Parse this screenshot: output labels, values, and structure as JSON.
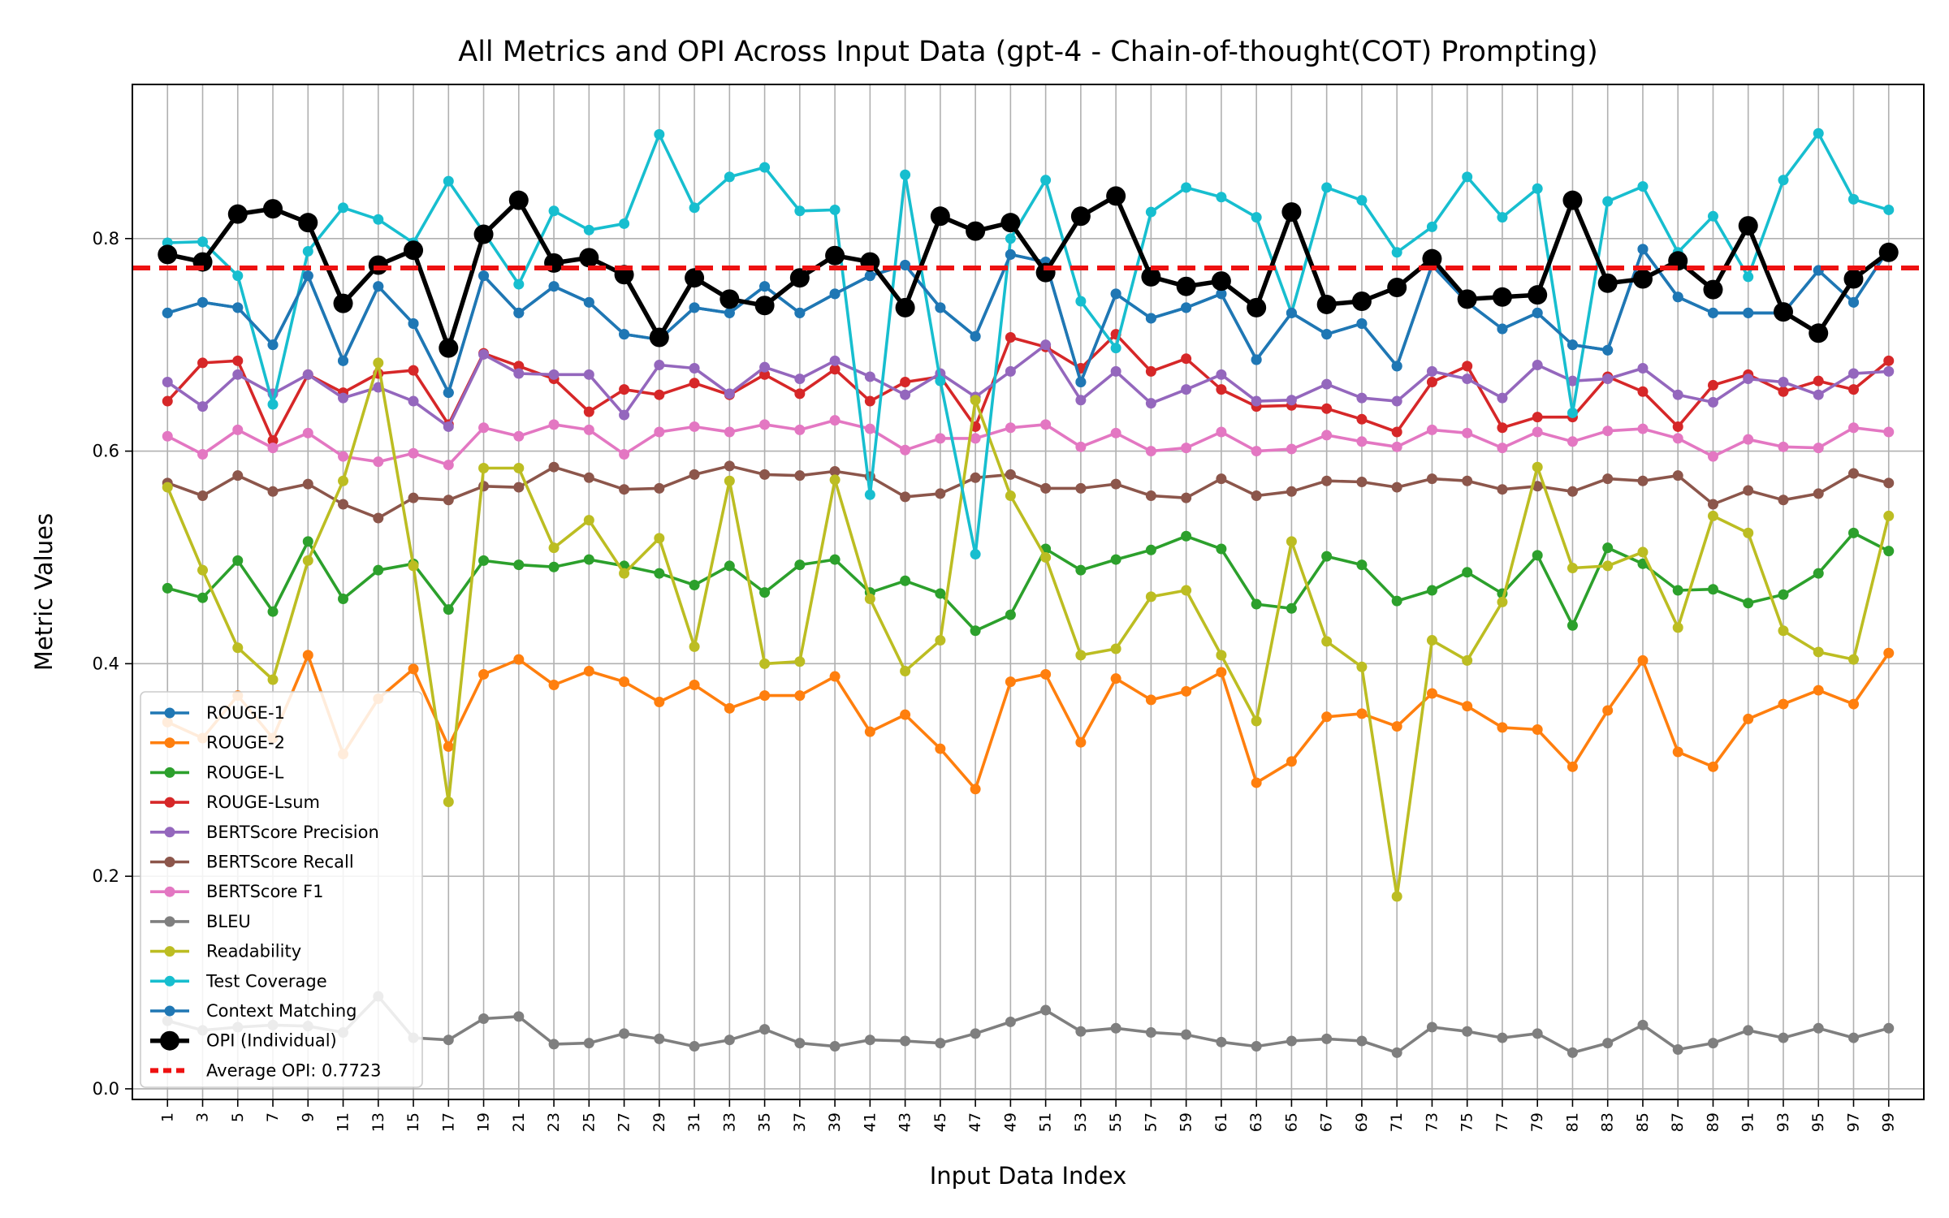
{
  "chart_data": {
    "type": "line",
    "title": "All Metrics and OPI Across Input Data (gpt-4 - Chain-of-thought(COT) Prompting)",
    "xlabel": "Input Data Index",
    "ylabel": "Metric Values",
    "xlim": [
      -1,
      101
    ],
    "ylim": [
      -0.01,
      0.945
    ],
    "grid": true,
    "legend_position": "lower-left",
    "x": [
      1,
      3,
      5,
      7,
      9,
      11,
      13,
      15,
      17,
      19,
      21,
      23,
      25,
      27,
      29,
      31,
      33,
      35,
      37,
      39,
      41,
      43,
      45,
      47,
      49,
      51,
      53,
      55,
      57,
      59,
      61,
      63,
      65,
      67,
      69,
      71,
      73,
      75,
      77,
      79,
      81,
      83,
      85,
      87,
      89,
      91,
      93,
      95,
      97,
      99
    ],
    "x_tick_labels": [
      "1",
      "3",
      "5",
      "7",
      "9",
      "11",
      "13",
      "15",
      "17",
      "19",
      "21",
      "23",
      "25",
      "27",
      "29",
      "31",
      "33",
      "35",
      "37",
      "39",
      "41",
      "43",
      "45",
      "47",
      "49",
      "51",
      "53",
      "55",
      "57",
      "59",
      "61",
      "63",
      "65",
      "67",
      "69",
      "71",
      "73",
      "75",
      "77",
      "79",
      "81",
      "83",
      "85",
      "87",
      "89",
      "91",
      "93",
      "95",
      "97",
      "99"
    ],
    "y_ticks": [
      0.0,
      0.2,
      0.4,
      0.6,
      0.8
    ],
    "y_tick_labels": [
      "0.0",
      "0.2",
      "0.4",
      "0.6",
      "0.8"
    ],
    "series": [
      {
        "name": "ROUGE-1",
        "color": "#1f77b4",
        "values": [
          0.73,
          0.74,
          0.735,
          0.7,
          0.765,
          0.685,
          0.755,
          0.72,
          0.655,
          0.765,
          0.73,
          0.755,
          0.74,
          0.71,
          0.705,
          0.735,
          0.73,
          0.755,
          0.73,
          0.748,
          0.765,
          0.775,
          0.735,
          0.708,
          0.785,
          0.778,
          0.665,
          0.748,
          0.725,
          0.735,
          0.748,
          0.686,
          0.73,
          0.71,
          0.72,
          0.68,
          0.775,
          0.74,
          0.715,
          0.73,
          0.7,
          0.695,
          0.79,
          0.745,
          0.73,
          0.73,
          0.73,
          0.77,
          0.74,
          0.79
        ]
      },
      {
        "name": "ROUGE-2",
        "color": "#ff7f0e",
        "values": [
          0.345,
          0.33,
          0.37,
          0.33,
          0.408,
          0.315,
          0.367,
          0.395,
          0.322,
          0.39,
          0.404,
          0.38,
          0.393,
          0.383,
          0.364,
          0.38,
          0.358,
          0.37,
          0.37,
          0.388,
          0.336,
          0.352,
          0.32,
          0.282,
          0.383,
          0.39,
          0.326,
          0.386,
          0.366,
          0.374,
          0.392,
          0.288,
          0.308,
          0.35,
          0.353,
          0.341,
          0.372,
          0.36,
          0.34,
          0.338,
          0.303,
          0.356,
          0.403,
          0.317,
          0.303,
          0.348,
          0.362,
          0.375,
          0.362,
          0.41
        ]
      },
      {
        "name": "ROUGE-L",
        "color": "#2ca02c",
        "values": [
          0.471,
          0.462,
          0.497,
          0.449,
          0.515,
          0.461,
          0.488,
          0.494,
          0.451,
          0.497,
          0.493,
          0.491,
          0.498,
          0.492,
          0.485,
          0.474,
          0.492,
          0.467,
          0.493,
          0.498,
          0.467,
          0.478,
          0.466,
          0.431,
          0.446,
          0.508,
          0.488,
          0.498,
          0.507,
          0.52,
          0.508,
          0.456,
          0.452,
          0.501,
          0.493,
          0.459,
          0.469,
          0.486,
          0.466,
          0.502,
          0.436,
          0.509,
          0.494,
          0.469,
          0.47,
          0.457,
          0.465,
          0.485,
          0.523,
          0.506
        ]
      },
      {
        "name": "ROUGE-Lsum",
        "color": "#d62728",
        "values": [
          0.647,
          0.683,
          0.685,
          0.61,
          0.672,
          0.655,
          0.673,
          0.676,
          0.625,
          0.692,
          0.68,
          0.668,
          0.637,
          0.658,
          0.653,
          0.664,
          0.653,
          0.672,
          0.654,
          0.677,
          0.647,
          0.665,
          0.67,
          0.623,
          0.707,
          0.698,
          0.678,
          0.71,
          0.675,
          0.687,
          0.658,
          0.642,
          0.643,
          0.64,
          0.63,
          0.618,
          0.665,
          0.68,
          0.622,
          0.632,
          0.632,
          0.67,
          0.656,
          0.623,
          0.662,
          0.672,
          0.656,
          0.666,
          0.658,
          0.685
        ]
      },
      {
        "name": "BERTScore Precision",
        "color": "#9467bd",
        "values": [
          0.665,
          0.642,
          0.672,
          0.654,
          0.672,
          0.65,
          0.66,
          0.647,
          0.623,
          0.691,
          0.673,
          0.672,
          0.672,
          0.634,
          0.681,
          0.678,
          0.654,
          0.679,
          0.668,
          0.685,
          0.67,
          0.653,
          0.673,
          0.651,
          0.675,
          0.7,
          0.648,
          0.675,
          0.645,
          0.658,
          0.672,
          0.647,
          0.648,
          0.663,
          0.65,
          0.647,
          0.675,
          0.668,
          0.65,
          0.681,
          0.666,
          0.668,
          0.678,
          0.653,
          0.646,
          0.668,
          0.665,
          0.653,
          0.673,
          0.675
        ]
      },
      {
        "name": "BERTScore Recall",
        "color": "#8c564b",
        "values": [
          0.57,
          0.558,
          0.577,
          0.562,
          0.569,
          0.55,
          0.537,
          0.556,
          0.554,
          0.567,
          0.566,
          0.585,
          0.575,
          0.564,
          0.565,
          0.578,
          0.586,
          0.578,
          0.577,
          0.581,
          0.576,
          0.557,
          0.56,
          0.575,
          0.578,
          0.565,
          0.565,
          0.569,
          0.558,
          0.556,
          0.574,
          0.558,
          0.562,
          0.572,
          0.571,
          0.566,
          0.574,
          0.572,
          0.564,
          0.567,
          0.562,
          0.574,
          0.572,
          0.577,
          0.55,
          0.563,
          0.554,
          0.56,
          0.579,
          0.57
        ]
      },
      {
        "name": "BERTScore F1",
        "color": "#e377c2",
        "values": [
          0.614,
          0.597,
          0.62,
          0.603,
          0.617,
          0.595,
          0.59,
          0.598,
          0.587,
          0.622,
          0.614,
          0.625,
          0.62,
          0.597,
          0.618,
          0.623,
          0.618,
          0.625,
          0.62,
          0.629,
          0.621,
          0.601,
          0.612,
          0.612,
          0.622,
          0.625,
          0.604,
          0.617,
          0.6,
          0.603,
          0.618,
          0.6,
          0.602,
          0.615,
          0.609,
          0.604,
          0.62,
          0.617,
          0.603,
          0.618,
          0.609,
          0.619,
          0.621,
          0.612,
          0.595,
          0.611,
          0.604,
          0.603,
          0.622,
          0.618
        ]
      },
      {
        "name": "BLEU",
        "color": "#7f7f7f",
        "values": [
          0.064,
          0.055,
          0.058,
          0.06,
          0.059,
          0.053,
          0.087,
          0.048,
          0.046,
          0.066,
          0.068,
          0.042,
          0.043,
          0.052,
          0.047,
          0.04,
          0.046,
          0.056,
          0.043,
          0.04,
          0.046,
          0.045,
          0.043,
          0.052,
          0.063,
          0.074,
          0.054,
          0.057,
          0.053,
          0.051,
          0.044,
          0.04,
          0.045,
          0.047,
          0.045,
          0.034,
          0.058,
          0.054,
          0.048,
          0.052,
          0.034,
          0.043,
          0.06,
          0.037,
          0.043,
          0.055,
          0.048,
          0.057,
          0.048,
          0.057
        ]
      },
      {
        "name": "Readability",
        "color": "#bcbd22",
        "values": [
          0.566,
          0.488,
          0.415,
          0.385,
          0.497,
          0.572,
          0.683,
          0.492,
          0.27,
          0.584,
          0.584,
          0.509,
          0.535,
          0.485,
          0.518,
          0.416,
          0.572,
          0.4,
          0.402,
          0.573,
          0.461,
          0.393,
          0.422,
          0.648,
          0.558,
          0.5,
          0.408,
          0.414,
          0.463,
          0.469,
          0.408,
          0.346,
          0.515,
          0.421,
          0.397,
          0.181,
          0.422,
          0.403,
          0.458,
          0.585,
          0.49,
          0.492,
          0.505,
          0.434,
          0.539,
          0.523,
          0.431,
          0.411,
          0.404,
          0.539
        ]
      },
      {
        "name": "Test Coverage",
        "color": "#17becf",
        "values": [
          0.796,
          0.797,
          0.765,
          0.644,
          0.788,
          0.829,
          0.818,
          0.796,
          0.854,
          0.806,
          0.757,
          0.826,
          0.808,
          0.814,
          0.898,
          0.829,
          0.858,
          0.867,
          0.826,
          0.827,
          0.559,
          0.86,
          0.666,
          0.503,
          0.8,
          0.855,
          0.741,
          0.697,
          0.825,
          0.848,
          0.839,
          0.82,
          0.73,
          0.848,
          0.836,
          0.787,
          0.811,
          0.858,
          0.82,
          0.847,
          0.636,
          0.835,
          0.849,
          0.787,
          0.821,
          0.764,
          0.855,
          0.899,
          0.837,
          0.827
        ]
      },
      {
        "name": "Context Matching",
        "color": "#1f77b4",
        "values": [
          0.73,
          0.74,
          0.735,
          0.7,
          0.765,
          0.685,
          0.755,
          0.72,
          0.655,
          0.765,
          0.73,
          0.755,
          0.74,
          0.71,
          0.705,
          0.735,
          0.73,
          0.755,
          0.73,
          0.748,
          0.765,
          0.775,
          0.735,
          0.708,
          0.785,
          0.778,
          0.665,
          0.748,
          0.725,
          0.735,
          0.748,
          0.686,
          0.73,
          0.71,
          0.72,
          0.68,
          0.775,
          0.74,
          0.715,
          0.73,
          0.7,
          0.695,
          0.79,
          0.745,
          0.73,
          0.73,
          0.73,
          0.77,
          0.74,
          0.79
        ]
      },
      {
        "name": "OPI (Individual)",
        "color": "#000000",
        "values": [
          0.785,
          0.778,
          0.823,
          0.828,
          0.815,
          0.739,
          0.775,
          0.789,
          0.697,
          0.804,
          0.836,
          0.777,
          0.782,
          0.766,
          0.707,
          0.763,
          0.743,
          0.737,
          0.763,
          0.784,
          0.778,
          0.735,
          0.821,
          0.807,
          0.815,
          0.768,
          0.821,
          0.84,
          0.764,
          0.755,
          0.76,
          0.735,
          0.825,
          0.738,
          0.741,
          0.754,
          0.781,
          0.743,
          0.745,
          0.747,
          0.836,
          0.758,
          0.762,
          0.779,
          0.752,
          0.812,
          0.731,
          0.711,
          0.762,
          0.787
        ]
      }
    ],
    "average_opi": {
      "name": "Average OPI: 0.7723",
      "value": 0.7723,
      "color": "#ee1111"
    }
  }
}
